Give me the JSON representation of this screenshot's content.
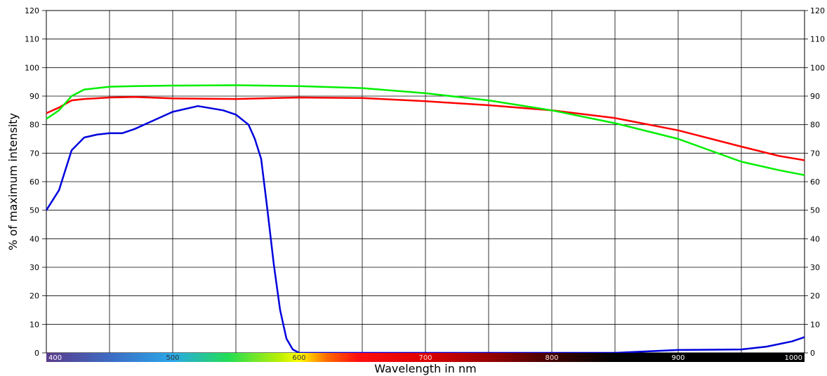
{
  "chart_data": {
    "type": "line",
    "xlabel": "Wavelength in nm",
    "ylabel": "% of maximum intensity",
    "xlim": [
      400,
      1000
    ],
    "ylim": [
      0,
      120
    ],
    "yticks": [
      "0",
      "10",
      "20",
      "30",
      "40",
      "50",
      "60",
      "70",
      "80",
      "90",
      "100",
      "110",
      "120"
    ],
    "xticks": [
      "400",
      "500",
      "600",
      "700",
      "800",
      "900",
      "1000"
    ],
    "grid": true,
    "legend": "none",
    "spectrum_bar": true,
    "series": [
      {
        "color": "#ff0000",
        "x": [
          400,
          410,
          420,
          430,
          450,
          470,
          500,
          550,
          600,
          650,
          700,
          750,
          800,
          850,
          900,
          950,
          980,
          1000
        ],
        "y": [
          84,
          86,
          88.5,
          89,
          89.5,
          89.7,
          89.2,
          89,
          89.5,
          89.3,
          88.2,
          86.8,
          85,
          82.3,
          78,
          72.3,
          69,
          67.5
        ]
      },
      {
        "color": "#00ee00",
        "x": [
          400,
          410,
          420,
          430,
          450,
          470,
          500,
          550,
          600,
          650,
          700,
          750,
          800,
          850,
          900,
          950,
          980,
          1000
        ],
        "y": [
          82,
          85,
          90,
          92.3,
          93.3,
          93.5,
          93.7,
          93.8,
          93.5,
          92.8,
          91,
          88.5,
          85,
          80.5,
          75,
          67,
          64,
          62.3
        ]
      },
      {
        "color": "#0000dd",
        "x": [
          400,
          410,
          415,
          420,
          430,
          440,
          450,
          460,
          470,
          480,
          500,
          520,
          540,
          550,
          560,
          565,
          570,
          575,
          580,
          585,
          590,
          595,
          600,
          700,
          850,
          900,
          950,
          970,
          990,
          1000
        ],
        "y": [
          50,
          57,
          64,
          71,
          75.5,
          76.5,
          77,
          77,
          78.5,
          80.5,
          84.5,
          86.5,
          85,
          83.5,
          80,
          75,
          68,
          50,
          31,
          15,
          5,
          1.2,
          0,
          0,
          0,
          1,
          1.2,
          2.2,
          4,
          5.5
        ]
      }
    ]
  },
  "spectrum_stops": [
    "#5a3a8a",
    "#2aa8e8",
    "#22dd55",
    "#eeee00",
    "#ff2222",
    "#cc0000",
    "#220000",
    "#000000"
  ]
}
